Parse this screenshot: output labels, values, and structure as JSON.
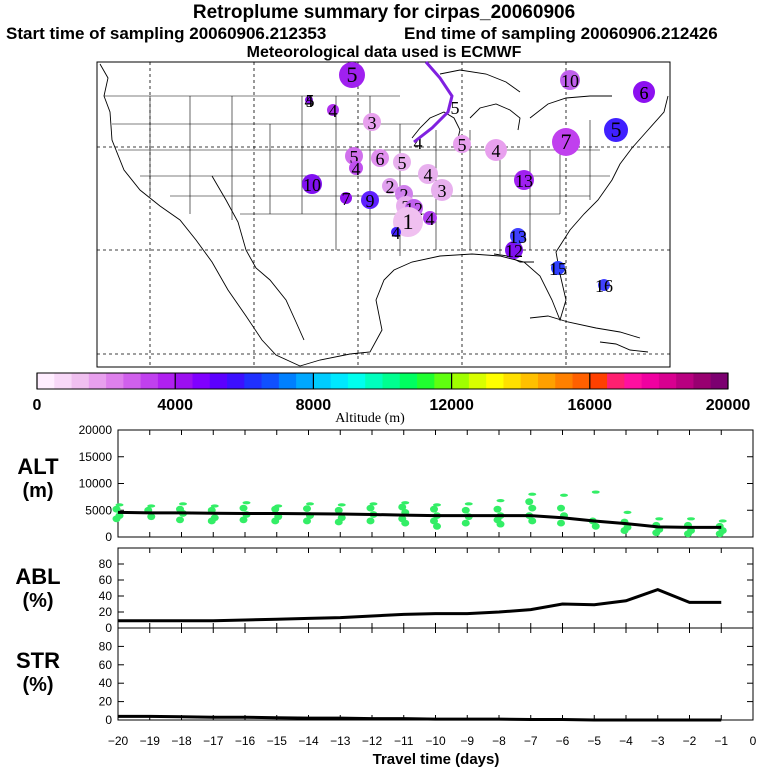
{
  "header": {
    "title": "Retroplume summary for cirpas_20060906",
    "start_label": "Start time of sampling 20060906.212353",
    "end_label": "End time of sampling 20060906.212426",
    "met_label": "Meteorological data used is ECMWF"
  },
  "colorbar": {
    "label": "Altitude (m)",
    "ticks": [
      "0",
      "4000",
      "8000",
      "12000",
      "16000",
      "20000"
    ],
    "colors": [
      "#ffeeff",
      "#f8d8f8",
      "#f0c0f0",
      "#e8a0ee",
      "#de80ec",
      "#d060ec",
      "#c040ee",
      "#b020f0",
      "#9c10f0",
      "#8000ff",
      "#5c00ff",
      "#3c10ff",
      "#2030ff",
      "#1050ff",
      "#0080ff",
      "#00a8ff",
      "#00ccff",
      "#00e8ff",
      "#00ffee",
      "#00ffbe",
      "#00ff90",
      "#00ff60",
      "#20ff30",
      "#60ff10",
      "#a0ff00",
      "#d8ff00",
      "#ffff00",
      "#ffe000",
      "#ffc000",
      "#ffa000",
      "#ff8000",
      "#ff6000",
      "#ff4000",
      "#ff2070",
      "#ff10a0",
      "#f000a0",
      "#d80090",
      "#b80080",
      "#980070",
      "#7c0070"
    ]
  },
  "map_labels": [
    {
      "text": "5",
      "color": "#a020f0"
    },
    {
      "text": "6",
      "color": "#8c10f0"
    },
    {
      "text": "10",
      "color": "#c060ec"
    },
    {
      "text": "6",
      "color": "#6020ff"
    },
    {
      "text": "5",
      "color": "#4020ff"
    },
    {
      "text": "4",
      "color": "#b030ee"
    },
    {
      "text": "3",
      "color": "#e8a0ee"
    },
    {
      "text": "4",
      "color": "#8c10f0"
    },
    {
      "text": "5",
      "color": "#e8a0ee"
    },
    {
      "text": "4",
      "color": "#e8a0ee"
    },
    {
      "text": "7",
      "color": "#c040ee"
    },
    {
      "text": "5",
      "color": "#8010f0"
    },
    {
      "text": "5",
      "color": "#d070ec"
    },
    {
      "text": "4",
      "color": "#c050ee"
    },
    {
      "text": "6",
      "color": "#e090ee"
    },
    {
      "text": "5",
      "color": "#e8b0ee"
    },
    {
      "text": "4",
      "color": "#e8b0ee"
    },
    {
      "text": "3",
      "color": "#e8b0ee"
    },
    {
      "text": "10",
      "color": "#8010f0"
    },
    {
      "text": "7",
      "color": "#9010f0"
    },
    {
      "text": "9",
      "color": "#6020ff"
    },
    {
      "text": "2",
      "color": "#e0a0ee"
    },
    {
      "text": "2",
      "color": "#d080ec"
    },
    {
      "text": "2",
      "color": "#e8b0ee"
    },
    {
      "text": "12",
      "color": "#c060ee"
    },
    {
      "text": "1",
      "color": "#f0c0f0"
    },
    {
      "text": "4",
      "color": "#b040ee"
    },
    {
      "text": "13",
      "color": "#a020f0"
    },
    {
      "text": "12",
      "color": "#8010f0"
    },
    {
      "text": "13",
      "color": "#4040ff"
    },
    {
      "text": "15",
      "color": "#3040ff"
    },
    {
      "text": "16",
      "color": "#4040ff"
    },
    {
      "text": "4",
      "color": "#4020ff"
    },
    {
      "text": "5",
      "color": "#5020ff"
    },
    {
      "text": "4",
      "color": "#000000"
    }
  ],
  "chart_data": [
    {
      "type": "line",
      "name": "ALT",
      "ylabel": "ALT (m)",
      "ylim": [
        0,
        20000
      ],
      "yticks": [
        0,
        5000,
        10000,
        15000,
        20000
      ],
      "x": [
        -20,
        -19,
        -18,
        -17,
        -16,
        -15,
        -14,
        -13,
        -12,
        -11,
        -10,
        -9,
        -8,
        -7,
        -6,
        -5,
        -4,
        -3,
        -2,
        -1
      ],
      "values": [
        4600,
        4500,
        4500,
        4450,
        4400,
        4400,
        4350,
        4300,
        4200,
        4100,
        4000,
        4000,
        4000,
        4000,
        3600,
        3000,
        2500,
        1900,
        1800,
        1800
      ],
      "scatter_color": "#33ee66",
      "spread": [
        [
          6000,
          5200,
          4000,
          3400
        ],
        [
          5800,
          5000,
          3800
        ],
        [
          6200,
          5200,
          4400,
          3200
        ],
        [
          5800,
          5000,
          3600,
          3000
        ],
        [
          6400,
          5400,
          4200,
          3200
        ],
        [
          5800,
          5200,
          3800,
          3000
        ],
        [
          6200,
          5300,
          4000,
          3000
        ],
        [
          6000,
          5000,
          3600,
          2800
        ],
        [
          6200,
          5400,
          4200,
          3000
        ],
        [
          6400,
          5600,
          4600,
          3400,
          2600
        ],
        [
          6000,
          5200,
          4000,
          3000,
          2000
        ],
        [
          6200,
          5000,
          3800,
          2600
        ],
        [
          6800,
          5200,
          4000,
          3200,
          2400
        ],
        [
          8000,
          6600,
          5400,
          4000,
          3000
        ],
        [
          7800,
          5400,
          4000,
          2600
        ],
        [
          8400,
          3000,
          2000
        ],
        [
          4600,
          2800,
          1800,
          1200
        ],
        [
          3400,
          2200,
          1400,
          800
        ],
        [
          3400,
          2200,
          1200,
          600
        ],
        [
          3000,
          2000,
          1200,
          600
        ]
      ]
    },
    {
      "type": "line",
      "name": "ABL",
      "ylabel": "ABL (%)",
      "ylim": [
        0,
        100
      ],
      "yticks": [
        0,
        20,
        40,
        60,
        80
      ],
      "x": [
        -20,
        -19,
        -18,
        -17,
        -16,
        -15,
        -14,
        -13,
        -12,
        -11,
        -10,
        -9,
        -8,
        -7,
        -6,
        -5,
        -4,
        -3,
        -2,
        -1
      ],
      "values": [
        9,
        9,
        9,
        9,
        10,
        11,
        12,
        13,
        15,
        17,
        18,
        18,
        20,
        23,
        30,
        29,
        34,
        48,
        32,
        32
      ]
    },
    {
      "type": "line",
      "name": "STR",
      "ylabel": "STR (%)",
      "ylim": [
        0,
        100
      ],
      "yticks": [
        0,
        20,
        40,
        60,
        80
      ],
      "x": [
        -20,
        -19,
        -18,
        -17,
        -16,
        -15,
        -14,
        -13,
        -12,
        -11,
        -10,
        -9,
        -8,
        -7,
        -6,
        -5,
        -4,
        -3,
        -2,
        -1
      ],
      "values": [
        4,
        4,
        3.5,
        3,
        3,
        2.5,
        2,
        2,
        1.5,
        1.5,
        1,
        1,
        1,
        0.5,
        0.5,
        0,
        0,
        0,
        0,
        0
      ]
    }
  ],
  "xaxis": {
    "label": "Travel time (days)",
    "ticks": [
      "−20",
      "−19",
      "−18",
      "−17",
      "−16",
      "−15",
      "−14",
      "−13",
      "−12",
      "−11",
      "−10",
      "−9",
      "−8",
      "−7",
      "−6",
      "−5",
      "−4",
      "−3",
      "−2",
      "−1",
      "0"
    ]
  }
}
